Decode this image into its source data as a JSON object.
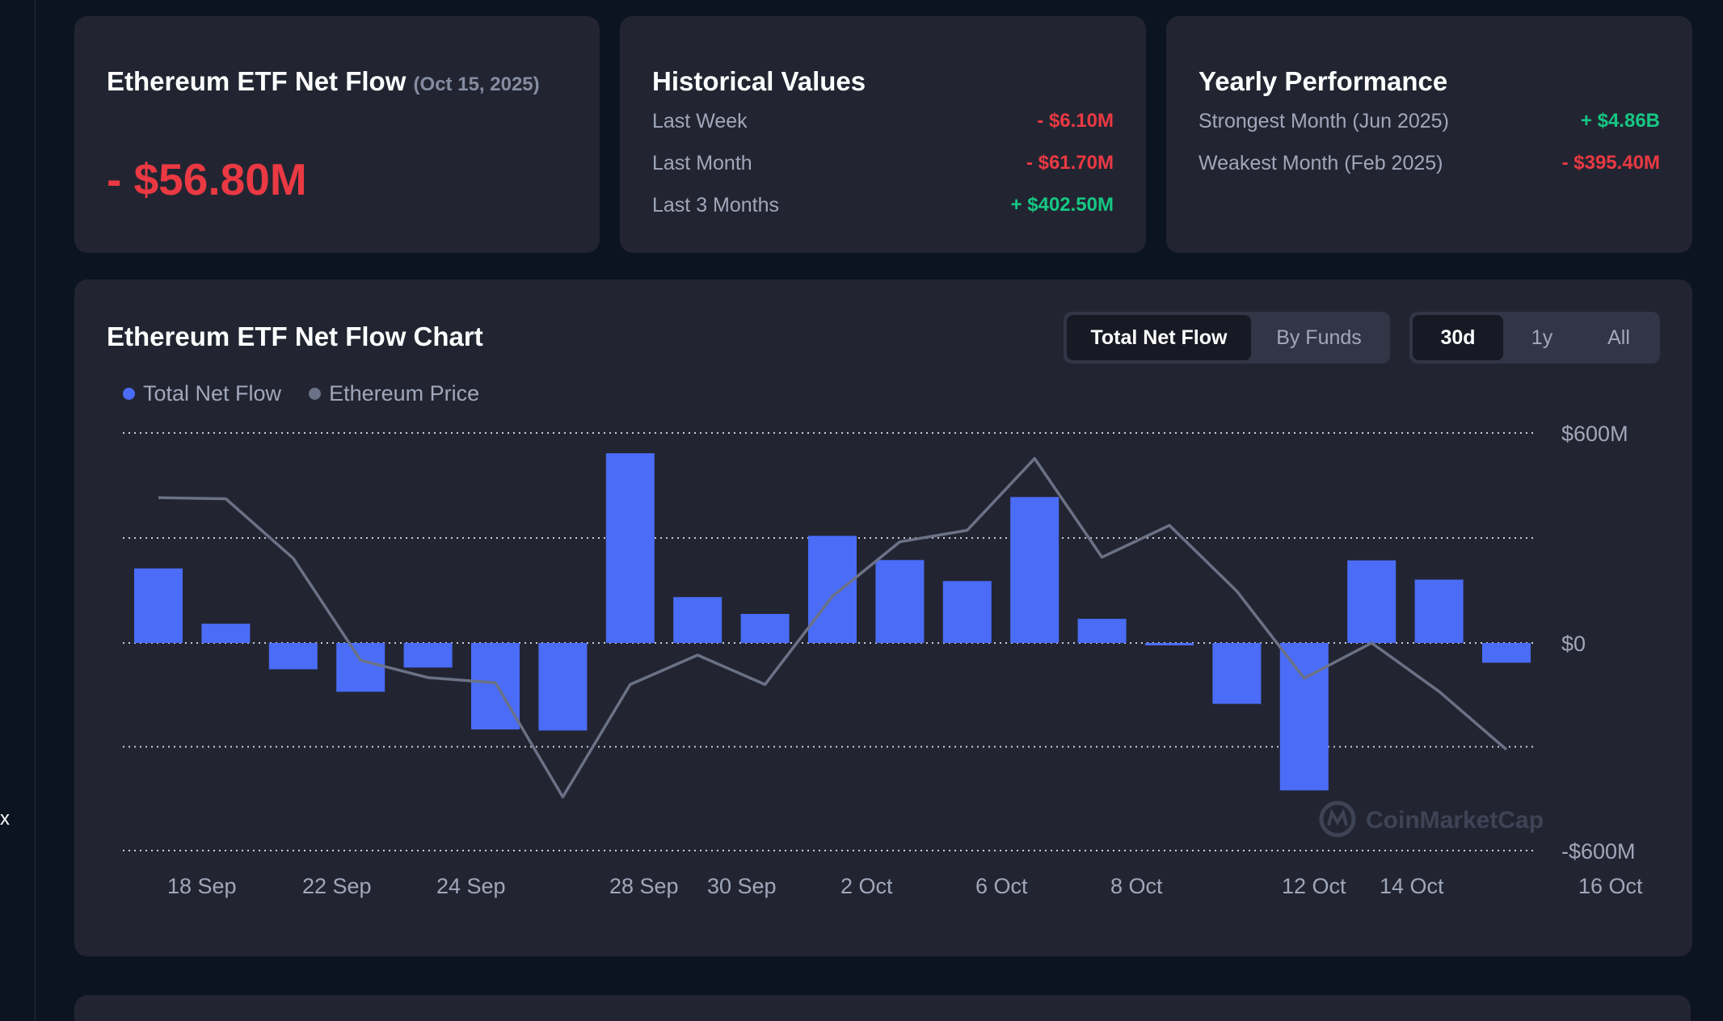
{
  "rail": {
    "glyph": "x"
  },
  "net_flow_card": {
    "title": "Ethereum ETF Net Flow",
    "date": "(Oct 15, 2025)",
    "value": "- $56.80M"
  },
  "historical": {
    "title": "Historical Values",
    "rows": [
      {
        "label": "Last Week",
        "value": "- $6.10M",
        "sign": "neg"
      },
      {
        "label": "Last Month",
        "value": "- $61.70M",
        "sign": "neg"
      },
      {
        "label": "Last 3 Months",
        "value": "+ $402.50M",
        "sign": "pos"
      }
    ]
  },
  "yearly": {
    "title": "Yearly Performance",
    "rows": [
      {
        "label": "Strongest Month",
        "paren": "(Jun 2025)",
        "value": "+ $4.86B",
        "sign": "pos"
      },
      {
        "label": "Weakest Month",
        "paren": "(Feb 2025)",
        "value": "- $395.40M",
        "sign": "neg"
      }
    ]
  },
  "chart_card": {
    "title": "Ethereum ETF Net Flow Chart",
    "view_tabs": [
      {
        "label": "Total Net Flow",
        "active": true
      },
      {
        "label": "By Funds",
        "active": false
      }
    ],
    "range_tabs": [
      {
        "label": "30d",
        "active": true
      },
      {
        "label": "1y",
        "active": false
      },
      {
        "label": "All",
        "active": false
      }
    ],
    "watermark": "CoinMarketCap"
  },
  "colors": {
    "bar": "#4a6cf7",
    "price_line": "#6b7186",
    "legend_price_dot": "#6b7186",
    "negative": "#ea3943",
    "positive": "#16c784",
    "card_bg": "#222531",
    "page_bg": "#0d1421"
  },
  "chart_data": {
    "type": "bar",
    "legend": [
      "Total Net Flow",
      "Ethereum Price"
    ],
    "legend_placement": "top-left",
    "ylabel_ticks": [
      "$600M",
      "$0",
      "-$600M"
    ],
    "ylim": [
      -600,
      600
    ],
    "x_tick_labels": [
      "18 Sep",
      "22 Sep",
      "24 Sep",
      "28 Sep",
      "30 Sep",
      "2 Oct",
      "6 Oct",
      "8 Oct",
      "12 Oct",
      "14 Oct",
      "16 Oct"
    ],
    "grid": true,
    "series": [
      {
        "name": "Total Net Flow",
        "values": [
          213,
          55,
          -76,
          -141,
          -71,
          -250,
          -253,
          542,
          131,
          83,
          306,
          237,
          177,
          417,
          69,
          -7,
          -176,
          -426,
          236,
          181,
          -57
        ]
      },
      {
        "name": "Ethereum Price",
        "type": "line",
        "values": [
          415,
          412,
          242,
          -50,
          -100,
          -115,
          -445,
          -120,
          -35,
          -120,
          133,
          289,
          322,
          527,
          245,
          336,
          148,
          -102,
          0,
          -140,
          -308
        ]
      }
    ]
  }
}
